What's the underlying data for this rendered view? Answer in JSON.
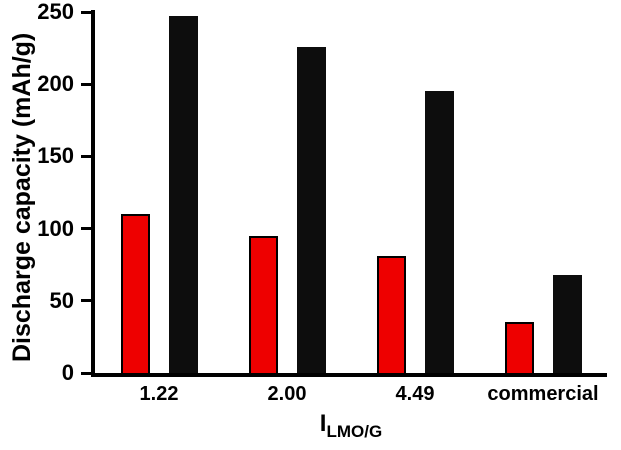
{
  "chart_data": {
    "type": "bar",
    "title": "",
    "ylabel": "Discharge capacity (mAh/g)",
    "xlabel": "I_LMO/G",
    "xlabel_main": "I",
    "xlabel_sub": "LMO/G",
    "categories": [
      "1.22",
      "2.00",
      "4.49",
      "commercial"
    ],
    "series": [
      {
        "name": "red-series",
        "color": "#ee0000",
        "outline": true,
        "values": [
          110,
          95,
          81,
          35
        ]
      },
      {
        "name": "black-series",
        "color": "#0d0d0d",
        "outline": false,
        "values": [
          247,
          226,
          195,
          68
        ]
      }
    ],
    "ylim": [
      0,
      250
    ],
    "yticks": [
      0,
      50,
      100,
      150,
      200,
      250
    ],
    "grid": false,
    "legend": "none"
  }
}
